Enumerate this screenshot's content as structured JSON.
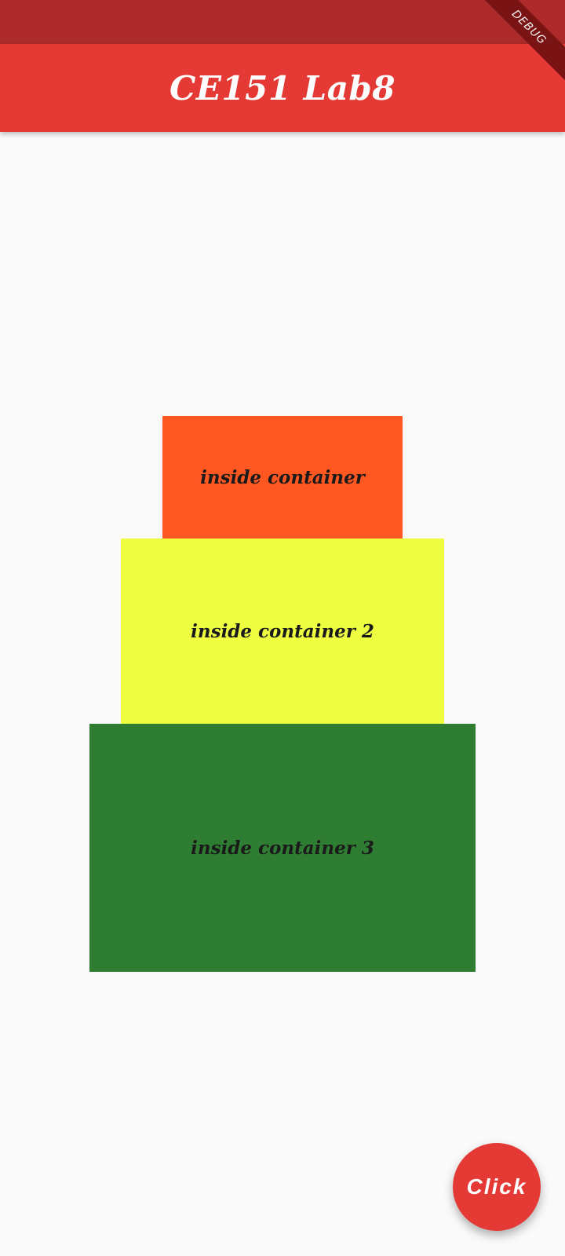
{
  "app_bar": {
    "title": "CE151 Lab8"
  },
  "debug_banner": {
    "label": "DEBUG"
  },
  "containers": [
    {
      "label": "inside container",
      "color": "#ff5722"
    },
    {
      "label": "inside container 2",
      "color": "#eeff41"
    },
    {
      "label": "inside container 3",
      "color": "#2e7d32"
    }
  ],
  "fab": {
    "label": "Click",
    "color": "#e53935"
  },
  "colors": {
    "status_bar": "#ad2a2a",
    "app_bar": "#e53935",
    "background": "#fafafa"
  }
}
